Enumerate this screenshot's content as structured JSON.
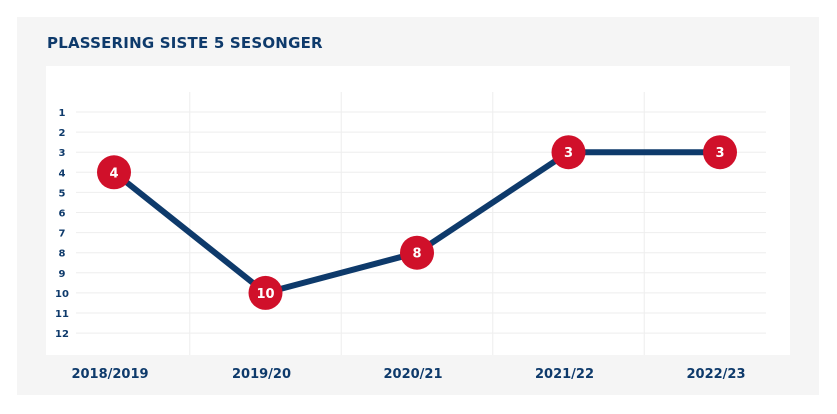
{
  "colors": {
    "line": "#0e3a6b",
    "marker": "#d0102a",
    "marker_text": "#ffffff",
    "grid": "#eeeeee",
    "text": "#0e3a6b"
  },
  "chart_data": {
    "type": "line",
    "title": "PLASSERING SISTE 5 SESONGER",
    "categories": [
      "2018/2019",
      "2019/20",
      "2020/21",
      "2021/22",
      "2022/23"
    ],
    "values": [
      4,
      10,
      8,
      3,
      3
    ],
    "y_ticks": [
      "1",
      "2",
      "3",
      "4",
      "5",
      "6",
      "7",
      "8",
      "9",
      "10",
      "11",
      "12"
    ],
    "ylim": [
      1,
      12
    ],
    "y_inverted": true,
    "grid": true,
    "data_labels": [
      "4",
      "10",
      "8",
      "3",
      "3"
    ]
  }
}
